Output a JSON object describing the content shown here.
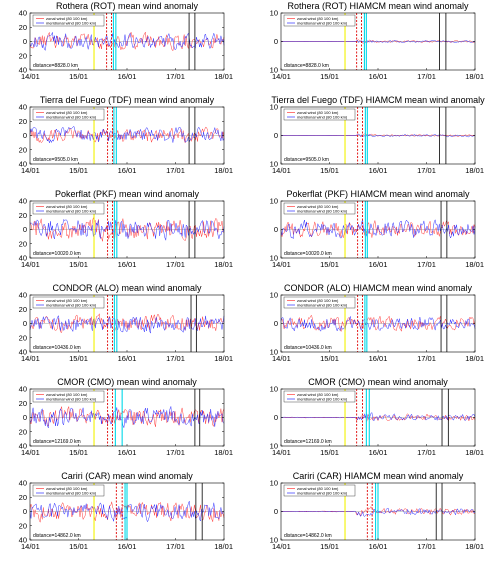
{
  "figure": {
    "x_tick_labels": [
      "14/01",
      "15/01",
      "16/01",
      "17/01",
      "18/01"
    ],
    "x_range_days": [
      14,
      18
    ],
    "legend_labels": [
      "zonal wind (80 100 km)",
      "meridional wind (80 100 km)"
    ],
    "colors": {
      "zonal": "#ff3b3b",
      "meridional": "#3030ff",
      "yellow_line": "#f2f200",
      "red_dashed": "#e00000",
      "cyan_line": "#00d8e8",
      "black_line": "#000000"
    }
  },
  "chart_data": [
    {
      "type": "line",
      "title": "Rothera (ROT)  mean wind anomaly",
      "distance": "distance=8828.0 km",
      "ylim": [
        -40,
        40
      ],
      "y_ticks": [
        "40",
        "20",
        "0",
        "20",
        "40"
      ],
      "series": [
        {
          "name": "zonal wind (80 100 km)",
          "amplitude": 15
        },
        {
          "name": "meridional wind (80 100 km)",
          "amplitude": 15
        }
      ],
      "markers": {
        "yellow": 15.32,
        "red_dashed": [
          15.58,
          15.68
        ],
        "cyan": [
          15.72,
          15.77
        ],
        "black": [
          17.28,
          17.4
        ]
      }
    },
    {
      "type": "line",
      "title": "Rothera (ROT) HIAMCM  mean wind anomaly",
      "distance": "distance=8828.0 km",
      "ylim": [
        -15,
        15
      ],
      "y_ticks": [
        "10",
        "0",
        "10"
      ],
      "series": [
        {
          "name": "zonal wind (80 100 km)",
          "amplitude": 1
        },
        {
          "name": "meridional wind (80 100 km)",
          "amplitude": 1
        }
      ],
      "markers": {
        "yellow": 15.32,
        "red_dashed": [
          15.56,
          15.66
        ],
        "cyan": [
          15.72,
          15.76
        ],
        "black": [
          17.27,
          17.4
        ]
      }
    },
    {
      "type": "line",
      "title": "Tierra del Fuego (TDF)  mean wind anomaly",
      "distance": "distance=9505.0 km",
      "ylim": [
        -40,
        40
      ],
      "y_ticks": [
        "40",
        "20",
        "0",
        "20",
        "40"
      ],
      "series": [
        {
          "name": "zonal wind (80 100 km)",
          "amplitude": 14
        },
        {
          "name": "meridional wind (80 100 km)",
          "amplitude": 14
        }
      ],
      "markers": {
        "yellow": 15.32,
        "red_dashed": [
          15.6,
          15.7
        ],
        "cyan": [
          15.73,
          15.78
        ],
        "black": [
          17.28,
          17.4
        ]
      }
    },
    {
      "type": "line",
      "title": "Tierra del Fuego (TDF) HIAMCM  mean wind anomaly",
      "distance": "distance=9505.0 km",
      "ylim": [
        -15,
        15
      ],
      "y_ticks": [
        "10",
        "0",
        "10"
      ],
      "series": [
        {
          "name": "zonal wind (80 100 km)",
          "amplitude": 1
        },
        {
          "name": "meridional wind (80 100 km)",
          "amplitude": 1
        }
      ],
      "markers": {
        "yellow": 15.32,
        "red_dashed": [
          15.58,
          15.68
        ],
        "cyan": [
          15.74,
          15.78
        ],
        "black": [
          17.27,
          17.4
        ]
      }
    },
    {
      "type": "line",
      "title": "Pokerflat (PKF)  mean wind anomaly",
      "distance": "distance=10020.0 km",
      "ylim": [
        -40,
        40
      ],
      "y_ticks": [
        "40",
        "20",
        "0",
        "20",
        "40"
      ],
      "series": [
        {
          "name": "zonal wind (80 100 km)",
          "amplitude": 20
        },
        {
          "name": "meridional wind (80 100 km)",
          "amplitude": 20
        }
      ],
      "markers": {
        "yellow": 15.32,
        "red_dashed": [
          15.6,
          15.7
        ],
        "cyan": [
          15.74,
          15.79
        ],
        "black": [
          17.28,
          17.4
        ]
      }
    },
    {
      "type": "line",
      "title": "Pokerflat (PKF) HIAMCM  mean wind anomaly",
      "distance": "distance=10020.0 km",
      "ylim": [
        -15,
        15
      ],
      "y_ticks": [
        "10",
        "0",
        "10"
      ],
      "series": [
        {
          "name": "zonal wind (80 100 km)",
          "amplitude": 6
        },
        {
          "name": "meridional wind (80 100 km)",
          "amplitude": 6
        }
      ],
      "markers": {
        "yellow": 15.32,
        "red_dashed": [
          15.58,
          15.68
        ],
        "cyan": [
          15.74,
          15.78
        ],
        "black": [
          17.3,
          17.42
        ]
      }
    },
    {
      "type": "line",
      "title": "CONDOR (ALO)  mean wind anomaly",
      "distance": "distance=10436.0 km",
      "ylim": [
        -40,
        40
      ],
      "y_ticks": [
        "40",
        "20",
        "0",
        "20",
        "40"
      ],
      "series": [
        {
          "name": "zonal wind (80 100 km)",
          "amplitude": 16
        },
        {
          "name": "meridional wind (80 100 km)",
          "amplitude": 16
        }
      ],
      "markers": {
        "yellow": 15.32,
        "red_dashed": [
          15.6,
          15.7
        ],
        "cyan": [
          15.74,
          15.79
        ],
        "black": [
          17.32,
          17.43
        ]
      }
    },
    {
      "type": "line",
      "title": "CONDOR (ALO) HIAMCM  mean wind anomaly",
      "distance": "distance=10436.0 km",
      "ylim": [
        -15,
        15
      ],
      "y_ticks": [
        "10",
        "0",
        "10"
      ],
      "series": [
        {
          "name": "zonal wind (80 100 km)",
          "amplitude": 5
        },
        {
          "name": "meridional wind (80 100 km)",
          "amplitude": 5
        }
      ],
      "markers": {
        "yellow": 15.32,
        "red_dashed": [
          15.58,
          15.68
        ],
        "cyan": [
          15.73,
          15.77
        ],
        "black": [
          17.3,
          17.42
        ]
      }
    },
    {
      "type": "line",
      "title": "CMOR (CMO)  mean wind anomaly",
      "distance": "distance=12169.0 km",
      "ylim": [
        -40,
        40
      ],
      "y_ticks": [
        "40",
        "20",
        "0",
        "20",
        "40"
      ],
      "series": [
        {
          "name": "zonal wind (80 100 km)",
          "amplitude": 18
        },
        {
          "name": "meridional wind (80 100 km)",
          "amplitude": 18
        }
      ],
      "markers": {
        "yellow": 15.32,
        "red_dashed": [
          15.6,
          15.7
        ],
        "cyan": [
          15.76,
          15.9
        ],
        "black": [
          17.4,
          17.5
        ]
      }
    },
    {
      "type": "line",
      "title": "CMOR (CMO)  mean wind anomaly",
      "distance": "distance=12169.0 km",
      "ylim": [
        -15,
        15
      ],
      "y_ticks": [
        "10",
        "0",
        "10"
      ],
      "series": [
        {
          "name": "zonal wind (80 100 km)",
          "amplitude": 3
        },
        {
          "name": "meridional wind (80 100 km)",
          "amplitude": 3
        }
      ],
      "markers": {
        "yellow": 15.32,
        "red_dashed": [
          15.56,
          15.68
        ],
        "cyan": [
          15.76,
          15.82
        ],
        "black": [
          17.32,
          17.45
        ]
      }
    },
    {
      "type": "line",
      "title": "Cariri (CAR)  mean wind anomaly",
      "distance": "distance=14862.0 km",
      "ylim": [
        -40,
        40
      ],
      "y_ticks": [
        "40",
        "20",
        "0",
        "20",
        "40"
      ],
      "series": [
        {
          "name": "zonal wind (80 100 km)",
          "amplitude": 17
        },
        {
          "name": "meridional wind (80 100 km)",
          "amplitude": 17
        }
      ],
      "markers": {
        "yellow": 15.32,
        "red_dashed": [
          15.78,
          15.9
        ],
        "cyan": [
          15.96,
          16.0
        ],
        "black": [
          17.42,
          17.55
        ]
      }
    },
    {
      "type": "line",
      "title": "Cariri (CAR) HIAMCM  mean wind anomaly",
      "distance": "distance=14862.0 km",
      "ylim": [
        -15,
        15
      ],
      "y_ticks": [
        "10",
        "0",
        "10"
      ],
      "series": [
        {
          "name": "zonal wind (80 100 km)",
          "amplitude": 3
        },
        {
          "name": "meridional wind (80 100 km)",
          "amplitude": 3
        }
      ],
      "markers": {
        "yellow": 15.32,
        "red_dashed": [
          15.78,
          15.88
        ],
        "cyan": [
          15.95,
          16.0
        ],
        "black": [
          17.2,
          17.32
        ]
      }
    }
  ]
}
